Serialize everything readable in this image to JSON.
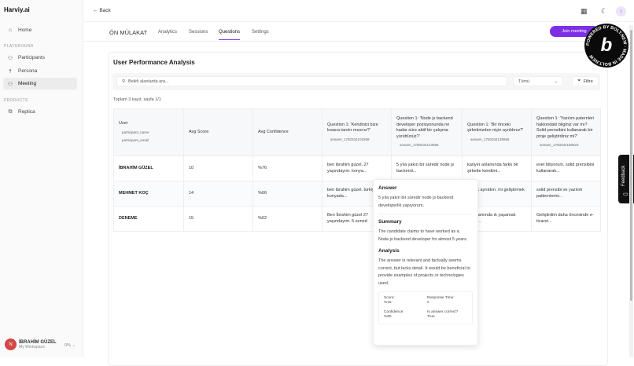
{
  "sidebar": {
    "brand": "Harviy.ai",
    "home": "Home",
    "playground": "PLAYGROUND",
    "participants": "Participants",
    "persona": "Persona",
    "meeting": "Meeting",
    "products": "PRODUCTS",
    "replica": "Replica",
    "user_name": "İBRAHİM GÜZEL",
    "workspace": "My Workspace",
    "avatar_initial": "N",
    "usage": "0%"
  },
  "header": {
    "back": "Back",
    "user_initial": "I"
  },
  "tabs": {
    "title": "ÖN MÜLAKAT",
    "items": [
      "Analytics",
      "Sessions",
      "Questions",
      "Settings"
    ],
    "active": "Questions"
  },
  "join_label": "Join meeting",
  "badge": {
    "text": "POWERED BY BOLT.NEW · MADE IN BOLT.NEW",
    "letter": "b"
  },
  "card": {
    "title": "User Performance Analysis",
    "search_placeholder": "Belirli alanlarda ara...",
    "select": "Tümü",
    "filter": "Filtre",
    "count": "Toplam 3 kayıt, sayfa 1/1"
  },
  "table": {
    "headers": [
      {
        "title": "User",
        "subs": [
          "participant_name",
          "participant_email"
        ]
      },
      {
        "title": "Avg Score"
      },
      {
        "title": "Avg Confidence"
      },
      {
        "title": "Question 1: 'Kendinizi bize kısaca tanıtır mısınız?'",
        "sub": "answer_1750334101558"
      },
      {
        "title": "Question 1: 'Node js backend developer pozisyonunda ne kadar süre aktif bir çalışma yürüttünüz?'",
        "sub": "answer_1750334123055"
      },
      {
        "title": "Question 1: 'Bir önceki şirketinizden niçin ayrıldınız?'",
        "sub": "answer_1750334135655"
      },
      {
        "title": "Question 1: 'Yazılım paternleri hakkındaki bilginiz var mı? Solid prensibini kullanarak bir proje geliştirdiniz mi?'",
        "sub": "answer_1750334180623"
      }
    ],
    "rows": [
      [
        "İBRAHİM GÜZEL",
        "10",
        "%76",
        "ben ibrahim güzel. 27 yaşındayım. konya...",
        "5 yıla yakın bir süredir node js backend...",
        "kariyer anlamında farklı bir şirkette kendimi...",
        "evet biliyorum. solid prensibini kullanarak..."
      ],
      [
        "MEHMET KOÇ",
        "14",
        "%66",
        "ben ibrahim güzel. türkiyede konyada...",
        "",
        "olarak ayrıldım. mi geliştirmek ve...",
        "solid prensibi ve yazılım patternlerini..."
      ],
      [
        "DENEME",
        "15",
        "%62",
        "Ben İbrahim güzel 27 yaşındayım. 5 sened",
        "",
        "er anlamında ık yaşamak istedi...",
        "Geliştirdim daha öncesinde e-ticaret..."
      ]
    ]
  },
  "popover": {
    "answer_title": "Answer",
    "answer": "5 yıla yakın bir süredir node js backend developerlik yapıyorum.",
    "summary_title": "Summary",
    "summary": "The candidate claims to have worked as a Node.js backend developer for almost 5 years.",
    "analysis_title": "Analysis",
    "analysis": "The answer is relevant and factually seems correct, but lacks detail. It would be beneficial to provide examples of projects or technologies used.",
    "score_label": "Score:",
    "score": "%15",
    "response_label": "Response Time:",
    "response": "s",
    "confidence_label": "Confidence:",
    "confidence": "%80",
    "correct_label": "Is answer correct?",
    "correct": "True"
  },
  "feedback": "Feedback",
  "colors": {
    "accent": "#7e2fe6"
  }
}
